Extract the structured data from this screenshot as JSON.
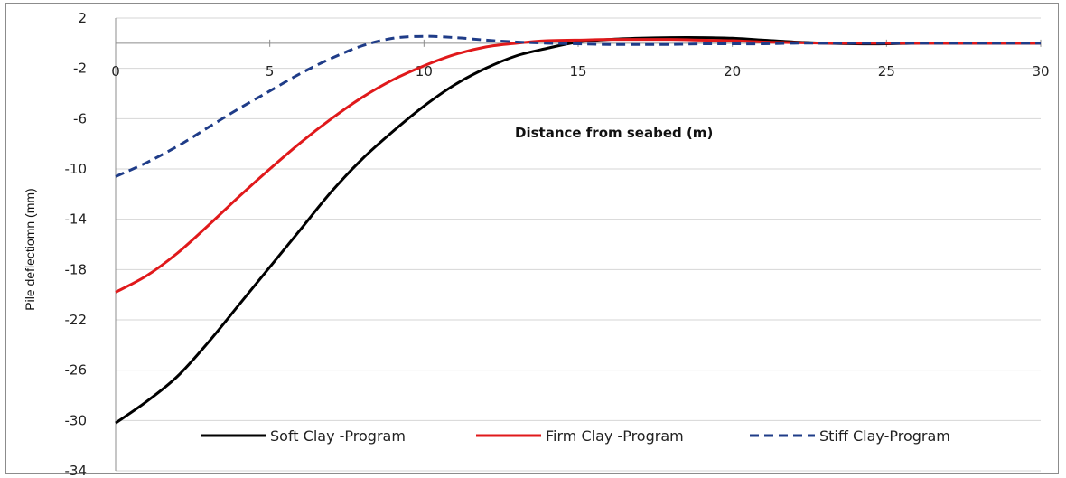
{
  "chart_data": {
    "type": "line",
    "title": "",
    "xlabel": "Distance from seabed (m)",
    "ylabel": "Pile deflectiomn (mm)",
    "xlim": [
      0,
      30
    ],
    "ylim": [
      -34,
      2
    ],
    "xticks": [
      0,
      5,
      10,
      15,
      20,
      25,
      30
    ],
    "yticks": [
      2,
      -2,
      -6,
      -10,
      -14,
      -18,
      -22,
      -26,
      -30,
      -34
    ],
    "grid": true,
    "legend_position": "bottom-right",
    "series": [
      {
        "name": "Soft Clay -Program",
        "color": "#000000",
        "dash": "solid",
        "x": [
          0,
          1,
          2,
          3,
          4,
          5,
          6,
          7,
          8,
          9,
          10,
          11,
          12,
          13,
          14,
          15,
          16,
          17,
          18,
          19,
          20,
          21,
          22,
          23,
          24,
          25,
          26,
          27,
          28,
          29,
          30
        ],
        "y": [
          -30.2,
          -28.5,
          -26.5,
          -23.8,
          -20.8,
          -17.8,
          -14.8,
          -11.8,
          -9.2,
          -7.0,
          -5.0,
          -3.3,
          -2.0,
          -1.0,
          -0.4,
          0.1,
          0.3,
          0.4,
          0.45,
          0.45,
          0.4,
          0.25,
          0.1,
          0.0,
          -0.05,
          -0.05,
          0.0,
          0.0,
          0.0,
          0.0,
          0.0
        ]
      },
      {
        "name": "Firm Clay -Program",
        "color": "#e0191b",
        "dash": "solid",
        "x": [
          0,
          1,
          2,
          3,
          4,
          5,
          6,
          7,
          8,
          9,
          10,
          11,
          12,
          13,
          14,
          15,
          16,
          17,
          18,
          19,
          20,
          21,
          22,
          23,
          24,
          25,
          26,
          27,
          28,
          29,
          30
        ],
        "y": [
          -19.8,
          -18.5,
          -16.7,
          -14.5,
          -12.2,
          -10.0,
          -7.9,
          -6.0,
          -4.3,
          -2.9,
          -1.8,
          -0.9,
          -0.3,
          0.0,
          0.2,
          0.25,
          0.3,
          0.3,
          0.3,
          0.25,
          0.2,
          0.1,
          0.05,
          0.0,
          0.0,
          0.0,
          0.0,
          0.0,
          0.0,
          0.0,
          0.0
        ]
      },
      {
        "name": "Stiff Clay-Program",
        "color": "#1f3c88",
        "dash": "dashed",
        "x": [
          0,
          1,
          2,
          3,
          4,
          5,
          6,
          7,
          8,
          9,
          10,
          11,
          12,
          13,
          14,
          15,
          16,
          17,
          18,
          19,
          20,
          21,
          22,
          23,
          24,
          25,
          26,
          27,
          28,
          29,
          30
        ],
        "y": [
          -10.6,
          -9.5,
          -8.2,
          -6.7,
          -5.2,
          -3.8,
          -2.4,
          -1.2,
          -0.2,
          0.4,
          0.55,
          0.45,
          0.25,
          0.1,
          0.0,
          -0.05,
          -0.1,
          -0.1,
          -0.1,
          -0.05,
          -0.05,
          -0.05,
          0.0,
          0.0,
          0.0,
          0.0,
          0.0,
          0.0,
          0.0,
          0.0,
          0.0
        ]
      }
    ]
  }
}
